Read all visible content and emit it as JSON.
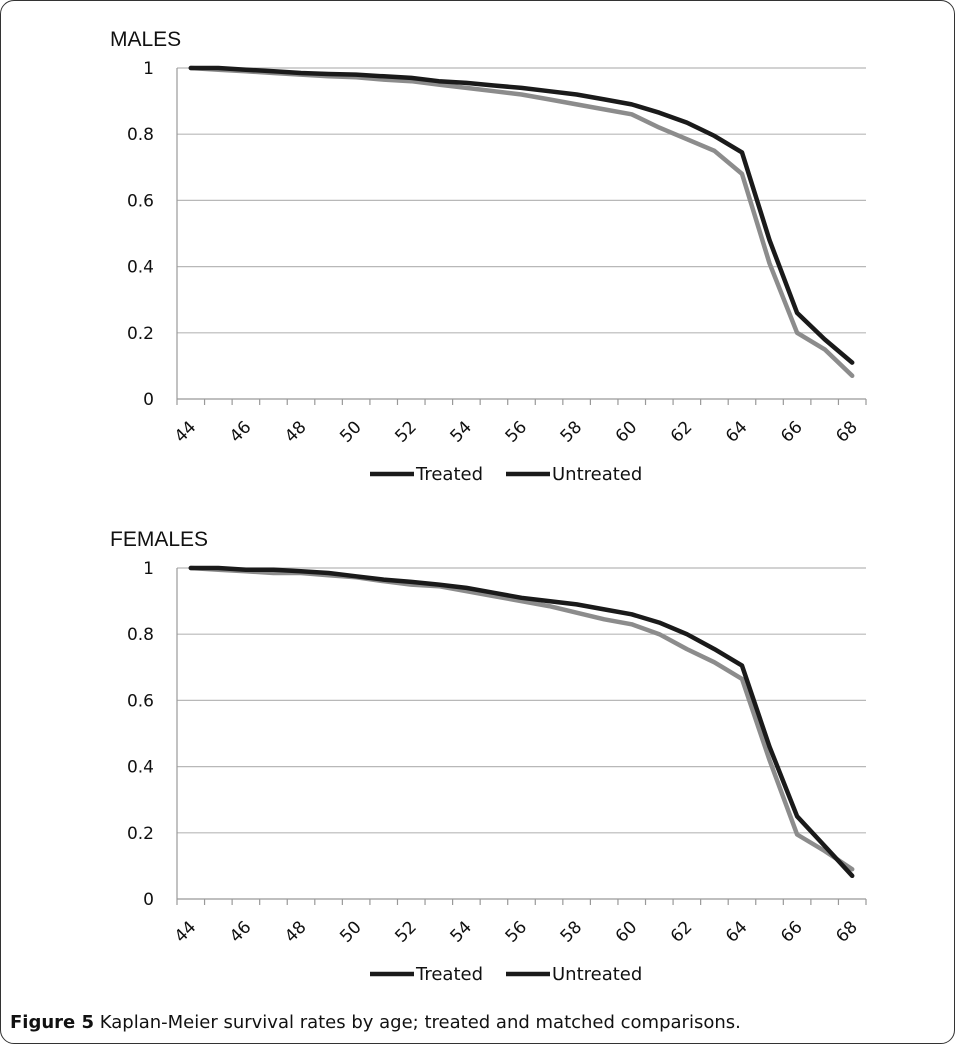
{
  "chart_data": [
    {
      "type": "line",
      "title": "MALES",
      "x": [
        44,
        45,
        46,
        47,
        48,
        49,
        50,
        51,
        52,
        53,
        54,
        55,
        56,
        57,
        58,
        59,
        60,
        61,
        62,
        63,
        64,
        65,
        66,
        67,
        68
      ],
      "xticks": [
        "44",
        "46",
        "48",
        "50",
        "52",
        "54",
        "56",
        "58",
        "60",
        "62",
        "64",
        "66",
        "68"
      ],
      "ylim": [
        0,
        1
      ],
      "yticks": [
        "0",
        "0.2",
        "0.4",
        "0.6",
        "0.8",
        "1"
      ],
      "grid": true,
      "legend_position": "bottom",
      "series": [
        {
          "name": "Treated",
          "color": "#1a1a1a",
          "values": [
            1.0,
            1.0,
            0.995,
            0.99,
            0.985,
            0.982,
            0.98,
            0.975,
            0.97,
            0.96,
            0.955,
            0.947,
            0.94,
            0.93,
            0.92,
            0.905,
            0.89,
            0.865,
            0.835,
            0.795,
            0.745,
            0.48,
            0.26,
            0.18,
            0.11
          ]
        },
        {
          "name": "Untreated",
          "color": "#8c8c8c",
          "values": [
            1.0,
            0.995,
            0.99,
            0.985,
            0.98,
            0.975,
            0.972,
            0.965,
            0.96,
            0.95,
            0.94,
            0.93,
            0.92,
            0.905,
            0.89,
            0.875,
            0.86,
            0.82,
            0.785,
            0.75,
            0.68,
            0.41,
            0.2,
            0.15,
            0.07
          ]
        }
      ]
    },
    {
      "type": "line",
      "title": "FEMALES",
      "x": [
        44,
        45,
        46,
        47,
        48,
        49,
        50,
        51,
        52,
        53,
        54,
        55,
        56,
        57,
        58,
        59,
        60,
        61,
        62,
        63,
        64,
        65,
        66,
        67,
        68
      ],
      "xticks": [
        "44",
        "46",
        "48",
        "50",
        "52",
        "54",
        "56",
        "58",
        "60",
        "62",
        "64",
        "66",
        "68"
      ],
      "ylim": [
        0,
        1
      ],
      "yticks": [
        "0",
        "0.2",
        "0.4",
        "0.6",
        "0.8",
        "1"
      ],
      "grid": true,
      "legend_position": "bottom",
      "series": [
        {
          "name": "Treated",
          "color": "#1a1a1a",
          "values": [
            1.0,
            1.0,
            0.995,
            0.995,
            0.99,
            0.985,
            0.975,
            0.965,
            0.958,
            0.95,
            0.94,
            0.925,
            0.91,
            0.9,
            0.89,
            0.875,
            0.86,
            0.835,
            0.8,
            0.755,
            0.705,
            0.46,
            0.25,
            0.16,
            0.07
          ]
        },
        {
          "name": "Untreated",
          "color": "#8c8c8c",
          "values": [
            1.0,
            0.995,
            0.99,
            0.985,
            0.985,
            0.978,
            0.972,
            0.96,
            0.95,
            0.945,
            0.93,
            0.915,
            0.9,
            0.885,
            0.865,
            0.845,
            0.83,
            0.8,
            0.755,
            0.715,
            0.665,
            0.42,
            0.195,
            0.145,
            0.09
          ]
        }
      ]
    }
  ],
  "caption": {
    "label": "Figure 5",
    "text": " Kaplan-Meier survival rates by age; treated and matched comparisons."
  }
}
